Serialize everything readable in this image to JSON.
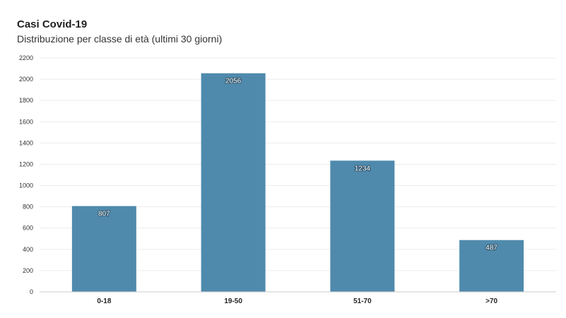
{
  "chart": {
    "title": "Casi Covid-19",
    "subtitle": "Distribuzione per classe di età (ultimi 30 giorni)"
  },
  "colors": {
    "bar": "#4f8aad",
    "grid": "#ececec",
    "axis": "#cccccc",
    "background": "#ffffff"
  },
  "chart_data": {
    "type": "bar",
    "title": "Casi Covid-19",
    "subtitle": "Distribuzione per classe di età (ultimi 30 giorni)",
    "categories": [
      "0-18",
      "19-50",
      "51-70",
      ">70"
    ],
    "values": [
      807,
      2056,
      1234,
      487
    ],
    "data_labels": [
      "807",
      "2056",
      "1234",
      "487"
    ],
    "xlabel": "",
    "ylabel": "",
    "ylim": [
      0,
      2200
    ],
    "yticks": [
      0,
      200,
      400,
      600,
      800,
      1000,
      1200,
      1400,
      1600,
      1800,
      2000,
      2200
    ],
    "grid": true,
    "legend": "none"
  }
}
